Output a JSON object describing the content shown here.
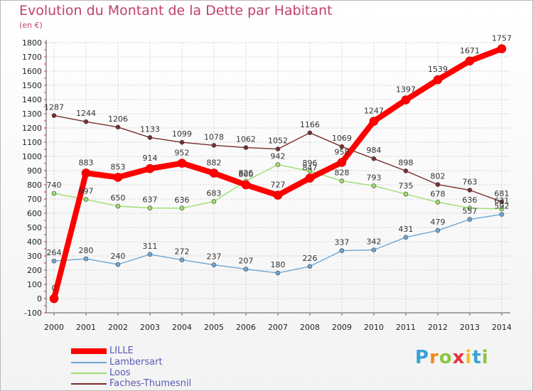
{
  "title": "Evolution du Montant de la Dette par Habitant",
  "unit_label": "(en €)",
  "logo": {
    "letters": [
      "P",
      "r",
      "o",
      "x",
      "i",
      "t",
      "i"
    ],
    "colors": [
      "#3aa3d6",
      "#f08a1d",
      "#8cc63f",
      "#e8303f",
      "#f7c21b",
      "#3aa3d6",
      "#8cc63f"
    ]
  },
  "chart_data": {
    "type": "line",
    "title": "Evolution du Montant de la Dette par Habitant",
    "ylabel": "(en €)",
    "x": [
      2000,
      2001,
      2002,
      2003,
      2004,
      2005,
      2006,
      2007,
      2008,
      2009,
      2010,
      2011,
      2012,
      2013,
      2014
    ],
    "x_tick_labels": [
      "2000",
      "2001",
      "2002",
      "2003",
      "2004",
      "2005",
      "2006",
      "2007",
      "2008",
      "2009",
      "2010",
      "2011",
      "2012",
      "2013",
      "2014"
    ],
    "ylim": [
      -100,
      1800
    ],
    "y_ticks": [
      -100,
      0,
      100,
      200,
      300,
      400,
      500,
      600,
      700,
      800,
      900,
      1000,
      1100,
      1200,
      1300,
      1400,
      1500,
      1600,
      1700,
      1800
    ],
    "y_tick_labels": [
      "-100",
      "0",
      "100",
      "200",
      "300",
      "400",
      "500",
      "600",
      "700",
      "800",
      "900",
      "1000",
      "1100",
      "1200",
      "1300",
      "1400",
      "1500",
      "1600",
      "1700",
      "1800"
    ],
    "grid": true,
    "legend_position": "bottom-left",
    "series": [
      {
        "name": "LILLE",
        "color": "#ff0000",
        "values": [
          0,
          883,
          853,
          914,
          952,
          882,
          800,
          727,
          847,
          958,
          1247,
          1397,
          1539,
          1671,
          1757
        ],
        "labels": [
          "0",
          "883",
          "853",
          "914",
          "952",
          "882",
          "800",
          "727",
          "847",
          "958",
          "1247",
          "1397",
          "1539",
          "1671",
          "1757"
        ]
      },
      {
        "name": "Lambersart",
        "color": "#6ea6d6",
        "values": [
          264,
          280,
          240,
          311,
          272,
          237,
          207,
          180,
          226,
          337,
          342,
          431,
          479,
          557,
          592
        ],
        "labels": [
          "264",
          "280",
          "240",
          "311",
          "272",
          "237",
          "207",
          "180",
          "226",
          "337",
          "342",
          "431",
          "479",
          "557",
          "592"
        ]
      },
      {
        "name": "Loos",
        "color": "#9ddd6e",
        "values": [
          740,
          697,
          650,
          637,
          636,
          683,
          826,
          942,
          896,
          828,
          793,
          735,
          678,
          636,
          631
        ],
        "labels": [
          "740",
          "697",
          "650",
          "637",
          "636",
          "683",
          "826",
          "942",
          "896",
          "828",
          "793",
          "735",
          "678",
          "636",
          "631"
        ]
      },
      {
        "name": "Faches-Thumesnil",
        "color": "#7a2e2e",
        "values": [
          1287,
          1244,
          1206,
          1133,
          1099,
          1078,
          1062,
          1052,
          1166,
          1069,
          984,
          898,
          802,
          763,
          681
        ],
        "labels": [
          "1287",
          "1244",
          "1206",
          "1133",
          "1099",
          "1078",
          "1062",
          "1052",
          "1166",
          "1069",
          "984",
          "898",
          "802",
          "763",
          "681"
        ]
      }
    ]
  }
}
